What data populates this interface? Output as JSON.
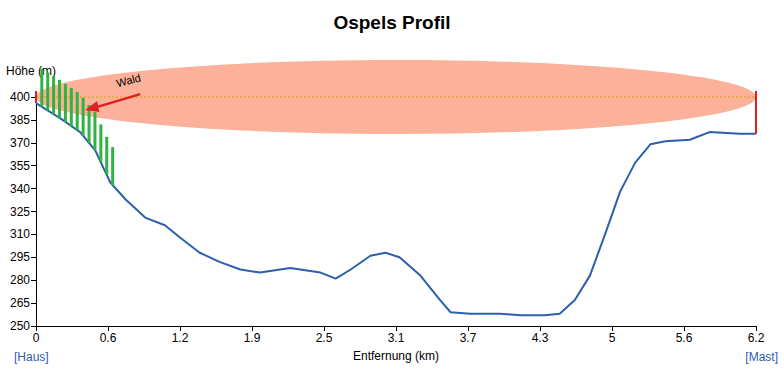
{
  "chart_data": {
    "type": "line",
    "title": "Ospels Profil",
    "x_label": "Entfernung (km)",
    "y_label": "Höhe (m)",
    "x": [
      0,
      0.21,
      0.38,
      0.51,
      0.64,
      0.77,
      0.94,
      1.11,
      1.24,
      1.41,
      1.58,
      1.76,
      1.93,
      2.19,
      2.45,
      2.58,
      2.71,
      2.88,
      3.01,
      3.13,
      3.31,
      3.48,
      3.57,
      3.74,
      4.0,
      4.17,
      4.38,
      4.51,
      4.64,
      4.77,
      4.9,
      5.03,
      5.16,
      5.29,
      5.42,
      5.63,
      5.8,
      6.06,
      6.2
    ],
    "values": [
      396,
      386,
      377,
      365,
      344,
      333,
      321,
      316,
      308,
      298,
      292,
      287,
      285,
      288,
      285,
      281,
      287,
      296,
      298,
      295,
      283,
      267,
      259,
      258,
      258,
      257,
      257,
      258,
      267,
      283,
      310,
      338,
      357,
      369,
      371,
      372,
      377,
      376,
      376
    ],
    "color": "#2e5fae",
    "xlim": [
      0,
      6.2
    ],
    "xticks": [
      0,
      {
        "value": 0.62,
        "label": "0.6"
      },
      {
        "value": 1.24,
        "label": "1.2"
      },
      {
        "value": 1.86,
        "label": "1.9"
      },
      {
        "value": 2.48,
        "label": "2.5"
      },
      3.1,
      {
        "value": 3.72,
        "label": "3.7"
      },
      {
        "value": 4.34,
        "label": "4.3"
      },
      {
        "value": 4.96,
        "label": "5"
      },
      {
        "value": 5.58,
        "label": "5.6"
      },
      6.2
    ],
    "ylim": [
      250,
      400
    ],
    "yticks": [
      250,
      265,
      280,
      295,
      310,
      325,
      340,
      355,
      370,
      385,
      400
    ],
    "grid": false,
    "endpoint_labels": [
      "[Haus]",
      "[Mast]"
    ],
    "annotations": [
      {
        "text": "Wald",
        "x_range": [
          0.05,
          0.66
        ]
      }
    ]
  }
}
